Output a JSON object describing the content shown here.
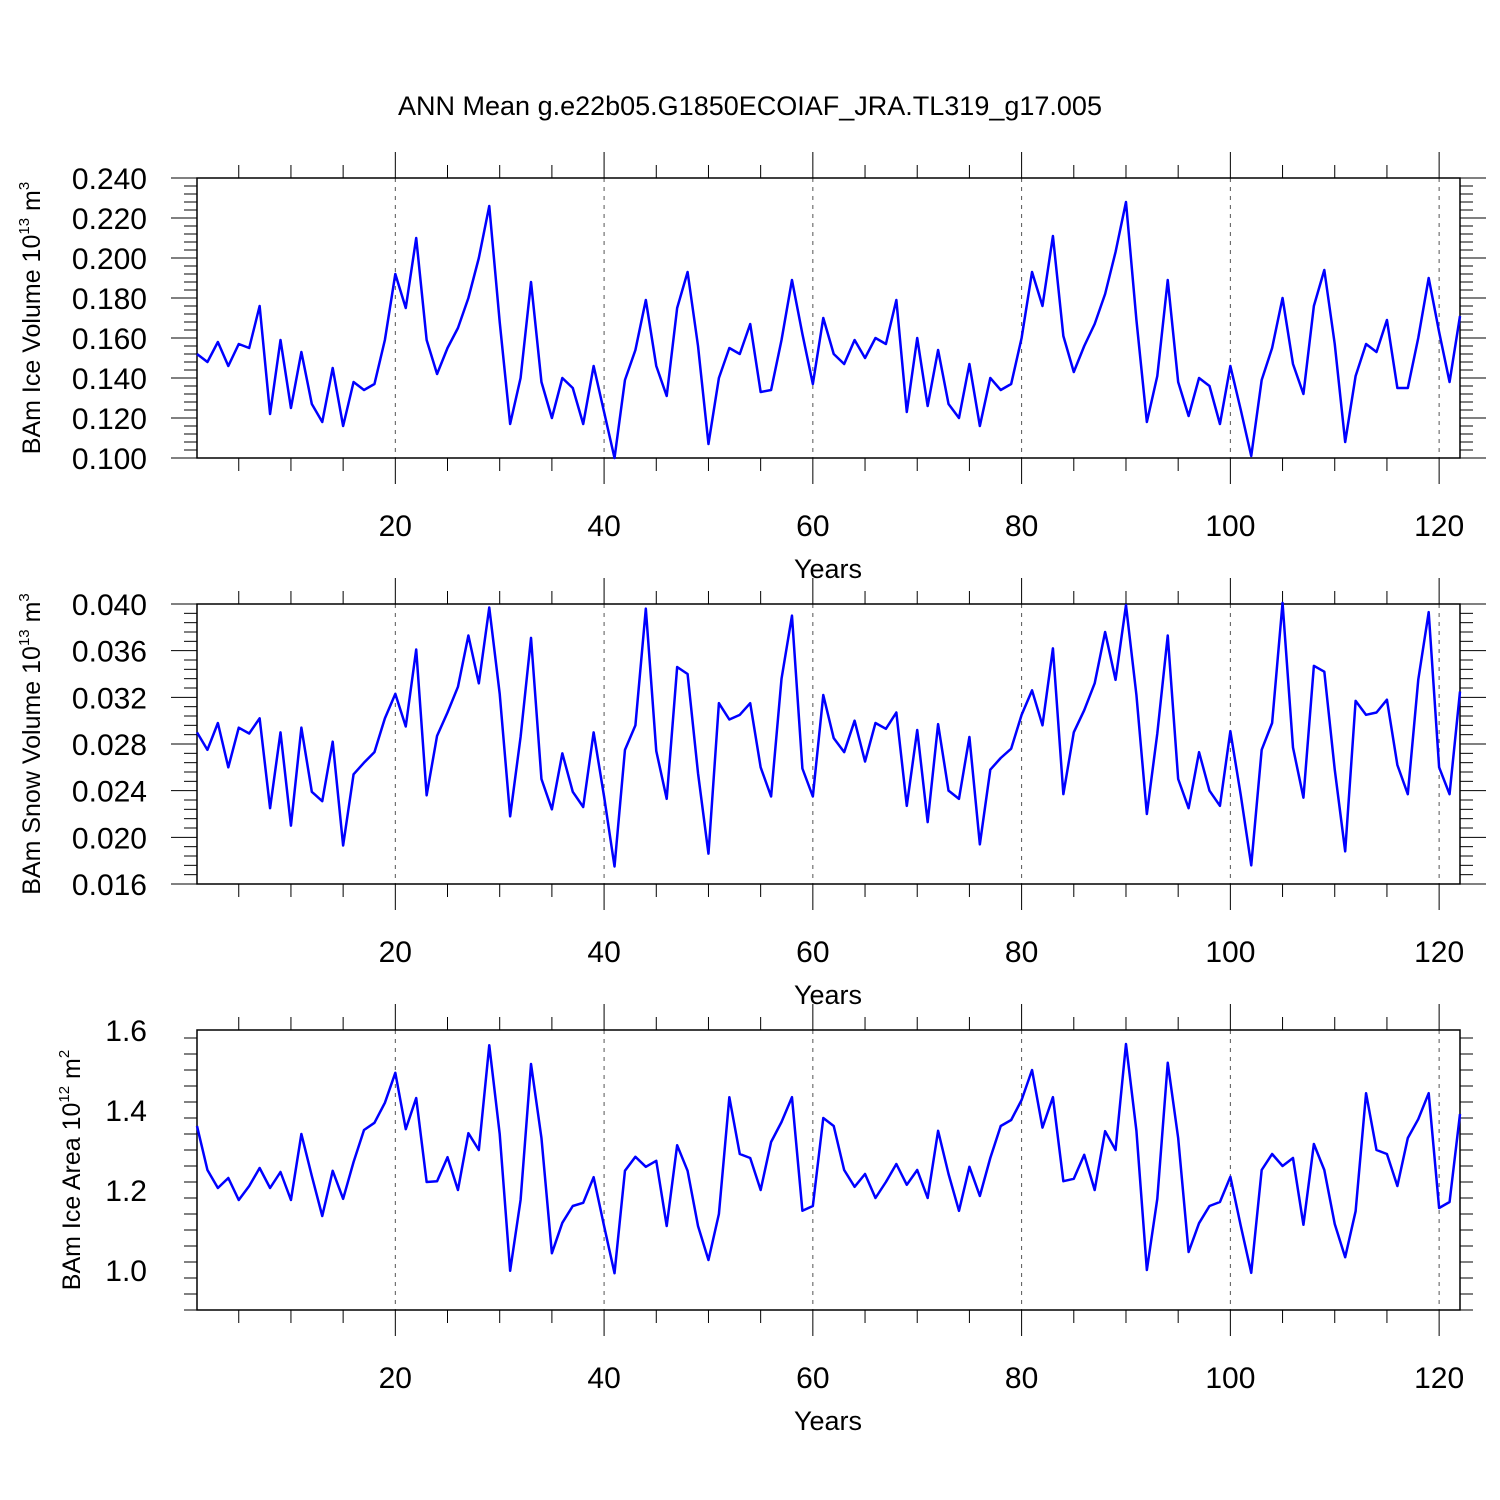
{
  "figure": {
    "title": "ANN Mean g.e22b05.G1850ECOIAF_JRA.TL319_g17.005"
  },
  "colors": {
    "series": "#0000ff"
  },
  "chart_data": [
    {
      "type": "line",
      "ylabel_main": "BAm Ice Volume 10",
      "ylabel_exp": "13",
      "ylabel_unit": " m",
      "ylabel_unit_exp": "3",
      "xlabel": "Years",
      "xlim": [
        1,
        122
      ],
      "ylim": [
        0.1,
        0.24
      ],
      "xticks": [
        20,
        40,
        60,
        80,
        100,
        120
      ],
      "xtick_labels": [
        "20",
        "40",
        "60",
        "80",
        "100",
        "120"
      ],
      "yticks": [
        0.1,
        0.12,
        0.14,
        0.16,
        0.18,
        0.2,
        0.22,
        0.24
      ],
      "ytick_labels": [
        "0.100",
        "0.120",
        "0.140",
        "0.160",
        "0.180",
        "0.200",
        "0.220",
        "0.240"
      ],
      "vgrid": [
        20,
        40,
        60,
        80,
        100,
        120
      ],
      "x_start": 1,
      "values": [
        0.152,
        0.148,
        0.158,
        0.146,
        0.157,
        0.155,
        0.176,
        0.122,
        0.159,
        0.125,
        0.153,
        0.127,
        0.118,
        0.145,
        0.116,
        0.138,
        0.134,
        0.137,
        0.159,
        0.192,
        0.175,
        0.21,
        0.159,
        0.142,
        0.155,
        0.165,
        0.18,
        0.2,
        0.226,
        0.168,
        0.117,
        0.14,
        0.188,
        0.138,
        0.12,
        0.14,
        0.135,
        0.117,
        0.146,
        0.123,
        0.1,
        0.139,
        0.154,
        0.179,
        0.146,
        0.131,
        0.175,
        0.193,
        0.156,
        0.107,
        0.14,
        0.155,
        0.152,
        0.167,
        0.133,
        0.134,
        0.159,
        0.189,
        0.162,
        0.137,
        0.17,
        0.152,
        0.147,
        0.159,
        0.15,
        0.16,
        0.157,
        0.179,
        0.123,
        0.16,
        0.126,
        0.154,
        0.127,
        0.12,
        0.147,
        0.116,
        0.14,
        0.134,
        0.137,
        0.16,
        0.193,
        0.176,
        0.211,
        0.161,
        0.143,
        0.156,
        0.167,
        0.182,
        0.203,
        0.228,
        0.169,
        0.118,
        0.141,
        0.189,
        0.138,
        0.121,
        0.14,
        0.136,
        0.117,
        0.146,
        0.124,
        0.101,
        0.139,
        0.155,
        0.18,
        0.147,
        0.132,
        0.176,
        0.194,
        0.157,
        0.108,
        0.141,
        0.157,
        0.153,
        0.169,
        0.135,
        0.135,
        0.16,
        0.19,
        0.163,
        0.138,
        0.171
      ]
    },
    {
      "type": "line",
      "ylabel_main": "BAm Snow Volume 10",
      "ylabel_exp": "13",
      "ylabel_unit": " m",
      "ylabel_unit_exp": "3",
      "xlabel": "Years",
      "xlim": [
        1,
        122
      ],
      "ylim": [
        0.016,
        0.04
      ],
      "xticks": [
        20,
        40,
        60,
        80,
        100,
        120
      ],
      "xtick_labels": [
        "20",
        "40",
        "60",
        "80",
        "100",
        "120"
      ],
      "yticks": [
        0.016,
        0.02,
        0.024,
        0.028,
        0.032,
        0.036,
        0.04
      ],
      "ytick_labels": [
        "0.016",
        "0.020",
        "0.024",
        "0.028",
        "0.032",
        "0.036",
        "0.040"
      ],
      "vgrid": [
        20,
        40,
        60,
        80,
        100,
        120
      ],
      "x_start": 1,
      "values": [
        0.029,
        0.0275,
        0.0298,
        0.026,
        0.0294,
        0.0289,
        0.0302,
        0.0225,
        0.029,
        0.021,
        0.0294,
        0.0239,
        0.0231,
        0.0282,
        0.0193,
        0.0254,
        0.0264,
        0.0273,
        0.0302,
        0.0323,
        0.0295,
        0.0361,
        0.0236,
        0.0287,
        0.0307,
        0.0329,
        0.0373,
        0.0332,
        0.0397,
        0.0323,
        0.0218,
        0.0286,
        0.0371,
        0.025,
        0.0224,
        0.0272,
        0.0239,
        0.0226,
        0.029,
        0.0235,
        0.0175,
        0.0275,
        0.0296,
        0.0396,
        0.0274,
        0.0233,
        0.0346,
        0.034,
        0.0255,
        0.0186,
        0.0315,
        0.0301,
        0.0305,
        0.0315,
        0.026,
        0.0235,
        0.0336,
        0.039,
        0.0259,
        0.0235,
        0.0322,
        0.0285,
        0.0273,
        0.03,
        0.0265,
        0.0298,
        0.0293,
        0.0307,
        0.0227,
        0.0292,
        0.0213,
        0.0297,
        0.024,
        0.0233,
        0.0286,
        0.0194,
        0.0258,
        0.0268,
        0.0276,
        0.0305,
        0.0326,
        0.0296,
        0.0362,
        0.0237,
        0.029,
        0.0309,
        0.0332,
        0.0376,
        0.0335,
        0.0399,
        0.0322,
        0.022,
        0.0289,
        0.0373,
        0.025,
        0.0225,
        0.0273,
        0.024,
        0.0227,
        0.0291,
        0.0236,
        0.0176,
        0.0275,
        0.0298,
        0.0401,
        0.0277,
        0.0234,
        0.0347,
        0.0342,
        0.0258,
        0.0188,
        0.0317,
        0.0305,
        0.0307,
        0.0318,
        0.0262,
        0.0237,
        0.0335,
        0.0393,
        0.026,
        0.0237,
        0.0325
      ]
    },
    {
      "type": "line",
      "ylabel_main": "BAm Ice Area 10",
      "ylabel_exp": "12",
      "ylabel_unit": " m",
      "ylabel_unit_exp": "2",
      "xlabel": "Years",
      "xlim": [
        1,
        122
      ],
      "ylim": [
        0.9,
        1.6
      ],
      "xticks": [
        20,
        40,
        60,
        80,
        100,
        120
      ],
      "xtick_labels": [
        "20",
        "40",
        "60",
        "80",
        "100",
        "120"
      ],
      "yticks": [
        1.0,
        1.2,
        1.4,
        1.6
      ],
      "ytick_labels": [
        "1.0",
        "1.2",
        "1.4",
        "1.6"
      ],
      "vgrid": [
        20,
        40,
        60,
        80,
        100,
        120
      ],
      "x_start": 1,
      "values": [
        1.36,
        1.25,
        1.205,
        1.23,
        1.175,
        1.21,
        1.255,
        1.205,
        1.245,
        1.175,
        1.34,
        1.235,
        1.135,
        1.248,
        1.178,
        1.27,
        1.35,
        1.368,
        1.418,
        1.493,
        1.352,
        1.43,
        1.22,
        1.222,
        1.282,
        1.2,
        1.342,
        1.3,
        1.562,
        1.34,
        0.998,
        1.175,
        1.515,
        1.33,
        1.042,
        1.118,
        1.16,
        1.168,
        1.232,
        1.11,
        0.992,
        1.248,
        1.283,
        1.258,
        1.273,
        1.11,
        1.312,
        1.248,
        1.11,
        1.025,
        1.14,
        1.432,
        1.29,
        1.28,
        1.2,
        1.32,
        1.37,
        1.432,
        1.148,
        1.16,
        1.38,
        1.36,
        1.25,
        1.208,
        1.24,
        1.18,
        1.22,
        1.265,
        1.213,
        1.25,
        1.18,
        1.348,
        1.24,
        1.148,
        1.258,
        1.185,
        1.28,
        1.36,
        1.375,
        1.425,
        1.5,
        1.356,
        1.432,
        1.222,
        1.228,
        1.288,
        1.2,
        1.347,
        1.3,
        1.565,
        1.348,
        1.0,
        1.178,
        1.518,
        1.33,
        1.045,
        1.117,
        1.16,
        1.17,
        1.233,
        1.11,
        0.993,
        1.25,
        1.29,
        1.26,
        1.28,
        1.113,
        1.315,
        1.25,
        1.115,
        1.032,
        1.147,
        1.442,
        1.3,
        1.29,
        1.21,
        1.33,
        1.377,
        1.442,
        1.155,
        1.17,
        1.39
      ]
    }
  ]
}
